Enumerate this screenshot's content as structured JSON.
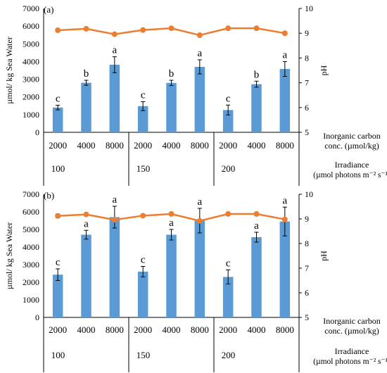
{
  "chart_data": [
    {
      "type": "bar",
      "panel_label": "(a)",
      "categories": [
        "2000",
        "4000",
        "8000",
        "2000",
        "4000",
        "8000",
        "2000",
        "4000",
        "8000"
      ],
      "groups": [
        "100",
        "150",
        "200"
      ],
      "category_axis_caption": [
        "Inorganic carbon",
        "conc. (µmol/kg)"
      ],
      "group_axis_caption": [
        "Irradiance",
        "(µmol photons m⁻² s⁻¹)"
      ],
      "ylabel": "µmol/ kg Sea Water",
      "ylim": [
        0,
        7000
      ],
      "yticks": [
        0,
        1000,
        2000,
        3000,
        4000,
        5000,
        6000,
        7000
      ],
      "y2label": "pH",
      "y2lim": [
        5,
        10
      ],
      "y2ticks": [
        5,
        6,
        7,
        8,
        9,
        10
      ],
      "grid": false,
      "series": [
        {
          "kind": "bar",
          "color": "#5b9bd5",
          "values": [
            1400,
            2800,
            3820,
            1480,
            2790,
            3700,
            1260,
            2720,
            3580
          ],
          "errors": [
            130,
            140,
            450,
            250,
            150,
            400,
            280,
            170,
            420
          ],
          "letters": [
            "c",
            "b",
            "a",
            "c",
            "b",
            "a",
            "c",
            "b",
            "a"
          ]
        },
        {
          "kind": "line",
          "axis": "right",
          "color": "#ed7d31",
          "values": [
            9.12,
            9.18,
            8.96,
            9.13,
            9.2,
            8.92,
            9.2,
            9.2,
            9.0
          ],
          "errors": [
            0.06,
            0.0,
            0.0,
            0.06,
            0.0,
            0.0,
            0.0,
            0.0,
            0.0
          ]
        }
      ]
    },
    {
      "type": "bar",
      "panel_label": "(b)",
      "categories": [
        "2000",
        "4000",
        "8000",
        "2000",
        "4000",
        "8000",
        "2000",
        "4000",
        "8000"
      ],
      "groups": [
        "100",
        "150",
        "200"
      ],
      "category_axis_caption": [
        "Inorganic carbon",
        "conc. (µmol/kg)"
      ],
      "group_axis_caption": [
        "Irradiance",
        "(µmol photons m⁻² s⁻¹)"
      ],
      "ylabel": "µmol/ kg Sea Water",
      "ylim": [
        0,
        7000
      ],
      "yticks": [
        0,
        1000,
        2000,
        3000,
        4000,
        5000,
        6000,
        7000
      ],
      "y2label": "pH",
      "y2lim": [
        5,
        10
      ],
      "y2ticks": [
        5,
        6,
        7,
        8,
        9,
        10
      ],
      "grid": false,
      "series": [
        {
          "kind": "bar",
          "color": "#5b9bd5",
          "values": [
            2430,
            4700,
            5700,
            2600,
            4700,
            5500,
            2300,
            4560,
            5450
          ],
          "errors": [
            330,
            250,
            620,
            300,
            300,
            700,
            400,
            280,
            820
          ],
          "letters": [
            "c",
            "a",
            "a",
            "c",
            "a",
            "a",
            "c",
            "a",
            "a"
          ]
        },
        {
          "kind": "line",
          "axis": "right",
          "color": "#ed7d31",
          "values": [
            9.12,
            9.18,
            8.96,
            9.13,
            9.2,
            8.92,
            9.2,
            9.2,
            8.98
          ],
          "errors": [
            0.08,
            0.0,
            0.0,
            0.0,
            0.0,
            0.0,
            0.0,
            0.0,
            0.0
          ]
        }
      ]
    }
  ]
}
